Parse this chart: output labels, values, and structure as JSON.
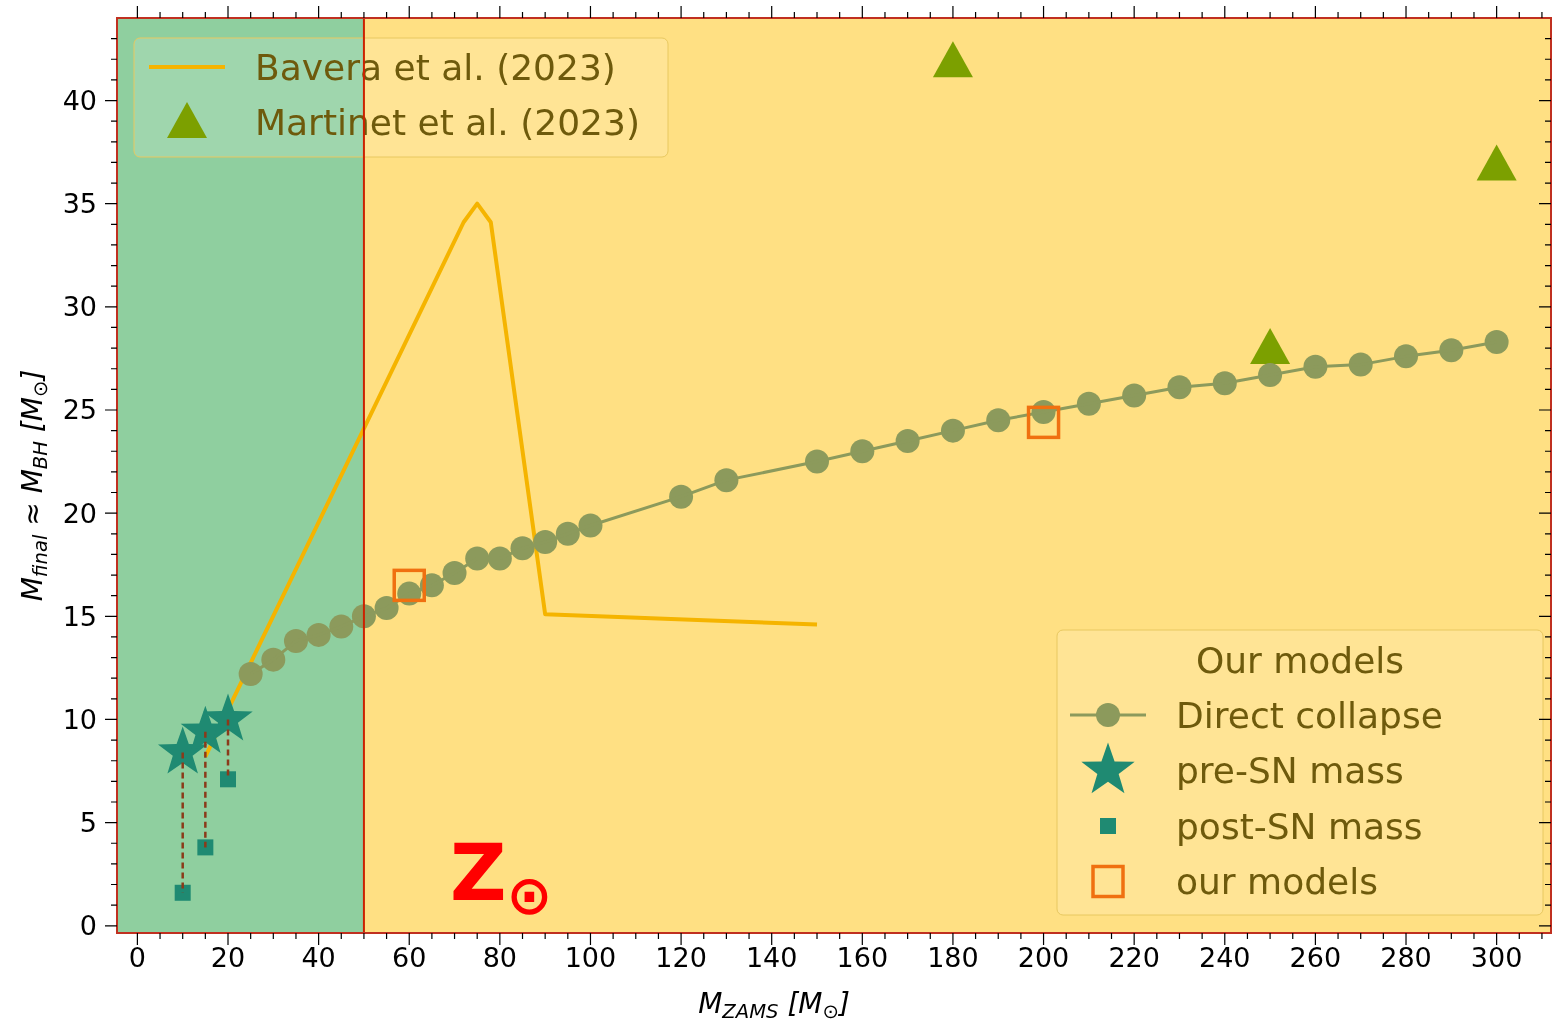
{
  "chart_data": {
    "type": "scatter",
    "xlabel": "M$_{ZAMS}$ [M$_{⊙}$]",
    "ylabel": "M$_{final}$ ≈ M$_{BH}$ [M$_{⊙}$]",
    "legend_title": "Our models",
    "legend": "top left",
    "annotations": [
      "Z$_{⊙}$"
    ],
    "xlim": [
      -4.5,
      312
    ],
    "ylim": [
      -0.35,
      44
    ],
    "xticks": [
      0,
      {
        "value": 5,
        "label": null
      },
      {
        "value": 10,
        "label": null
      },
      {
        "value": 15,
        "label": null
      },
      20,
      {
        "value": 25,
        "label": null
      },
      {
        "value": 30,
        "label": null
      },
      {
        "value": 35,
        "label": null
      },
      40,
      {
        "value": 45,
        "label": null
      },
      {
        "value": 50,
        "label": null
      },
      {
        "value": 55,
        "label": null
      },
      60,
      {
        "value": 65,
        "label": null
      },
      {
        "value": 70,
        "label": null
      },
      {
        "value": 75,
        "label": null
      },
      80,
      {
        "value": 85,
        "label": null
      },
      {
        "value": 90,
        "label": null
      },
      {
        "value": 95,
        "label": null
      },
      100,
      {
        "value": 105,
        "label": null
      },
      {
        "value": 110,
        "label": null
      },
      {
        "value": 115,
        "label": null
      },
      120,
      {
        "value": 125,
        "label": null
      },
      {
        "value": 130,
        "label": null
      },
      {
        "value": 135,
        "label": null
      },
      140,
      {
        "value": 145,
        "label": null
      },
      {
        "value": 150,
        "label": null
      },
      {
        "value": 155,
        "label": null
      },
      160,
      {
        "value": 165,
        "label": null
      },
      {
        "value": 170,
        "label": null
      },
      {
        "value": 175,
        "label": null
      },
      180,
      {
        "value": 185,
        "label": null
      },
      {
        "value": 190,
        "label": null
      },
      {
        "value": 195,
        "label": null
      },
      200,
      {
        "value": 205,
        "label": null
      },
      {
        "value": 210,
        "label": null
      },
      {
        "value": 215,
        "label": null
      },
      220,
      {
        "value": 225,
        "label": null
      },
      {
        "value": 230,
        "label": null
      },
      {
        "value": 235,
        "label": null
      },
      240,
      {
        "value": 245,
        "label": null
      },
      {
        "value": 250,
        "label": null
      },
      {
        "value": 255,
        "label": null
      },
      260,
      {
        "value": 265,
        "label": null
      },
      {
        "value": 270,
        "label": null
      },
      {
        "value": 275,
        "label": null
      },
      280,
      {
        "value": 285,
        "label": null
      },
      {
        "value": 290,
        "label": null
      },
      {
        "value": 295,
        "label": null
      },
      300,
      {
        "value": 305,
        "label": null
      },
      {
        "value": 310,
        "label": null
      }
    ],
    "yticks": [
      0,
      {
        "value": 1,
        "label": null
      },
      {
        "value": 2,
        "label": null
      },
      {
        "value": 3,
        "label": null
      },
      {
        "value": 4,
        "label": null
      },
      5,
      {
        "value": 6,
        "label": null
      },
      {
        "value": 7,
        "label": null
      },
      {
        "value": 8,
        "label": null
      },
      {
        "value": 9,
        "label": null
      },
      10,
      {
        "value": 11,
        "label": null
      },
      {
        "value": 12,
        "label": null
      },
      {
        "value": 13,
        "label": null
      },
      {
        "value": 14,
        "label": null
      },
      15,
      {
        "value": 16,
        "label": null
      },
      {
        "value": 17,
        "label": null
      },
      {
        "value": 18,
        "label": null
      },
      {
        "value": 19,
        "label": null
      },
      20,
      {
        "value": 21,
        "label": null
      },
      {
        "value": 22,
        "label": null
      },
      {
        "value": 23,
        "label": null
      },
      {
        "value": 24,
        "label": null
      },
      25,
      {
        "value": 26,
        "label": null
      },
      {
        "value": 27,
        "label": null
      },
      {
        "value": 28,
        "label": null
      },
      {
        "value": 29,
        "label": null
      },
      30,
      {
        "value": 31,
        "label": null
      },
      {
        "value": 32,
        "label": null
      },
      {
        "value": 33,
        "label": null
      },
      {
        "value": 34,
        "label": null
      },
      35,
      {
        "value": 36,
        "label": null
      },
      {
        "value": 37,
        "label": null
      },
      {
        "value": 38,
        "label": null
      },
      {
        "value": 39,
        "label": null
      },
      40,
      {
        "value": 41,
        "label": null
      },
      {
        "value": 42,
        "label": null
      },
      {
        "value": 43,
        "label": null
      }
    ],
    "bands": [
      {
        "axis": "x",
        "from": -4.5,
        "to": 50,
        "color": "#20a040"
      },
      {
        "axis": "x",
        "from": 50,
        "to": 312,
        "color": "#ffc107"
      }
    ],
    "ref_lines": [
      {
        "axis": "x",
        "value": 50,
        "color": "#cc2200"
      }
    ],
    "series": [
      {
        "name": "Bavera et al. (2023)",
        "type": "line",
        "marker": "none",
        "color": "#f5b400",
        "x": [
          15,
          72,
          75,
          78,
          90,
          150
        ],
        "values": [
          8.2,
          34.1,
          35.0,
          34.1,
          15.1,
          14.6
        ]
      },
      {
        "name": "Martinet et al. (2023)",
        "marker": "triangle",
        "color": "#7ca000",
        "x": [
          180,
          250,
          300
        ],
        "values": [
          41.9,
          28.0,
          36.9
        ]
      },
      {
        "name": "Direct collapse",
        "type": "line",
        "marker": "circle",
        "color": "#8c9a5c",
        "x": [
          25,
          30,
          35,
          40,
          45,
          50,
          55,
          60,
          65,
          70,
          75,
          80,
          85,
          90,
          95,
          100,
          120,
          130,
          150,
          160,
          170,
          180,
          190,
          200,
          210,
          220,
          230,
          240,
          250,
          260,
          270,
          280,
          290,
          300
        ],
        "values": [
          12.2,
          12.9,
          13.8,
          14.1,
          14.5,
          15.0,
          15.4,
          16.1,
          16.5,
          17.1,
          17.8,
          17.8,
          18.3,
          18.6,
          19.0,
          19.4,
          20.8,
          21.6,
          22.5,
          23.0,
          23.5,
          24.0,
          24.5,
          24.9,
          25.3,
          25.7,
          26.1,
          26.3,
          26.7,
          27.1,
          27.2,
          27.6,
          27.9,
          28.3
        ]
      },
      {
        "name": "pre-SN mass",
        "marker": "star",
        "color": "#1f8a72",
        "x": [
          10,
          15,
          20
        ],
        "values": [
          8.4,
          9.4,
          10.0
        ]
      },
      {
        "name": "post-SN mass",
        "marker": "square",
        "color": "#1f8a72",
        "x": [
          10,
          15,
          20
        ],
        "values": [
          1.6,
          3.8,
          7.1
        ]
      },
      {
        "name": "our models",
        "marker": "square",
        "color": "#f07010",
        "x": [
          60,
          200
        ],
        "values": [
          16.5,
          24.4
        ]
      }
    ]
  }
}
